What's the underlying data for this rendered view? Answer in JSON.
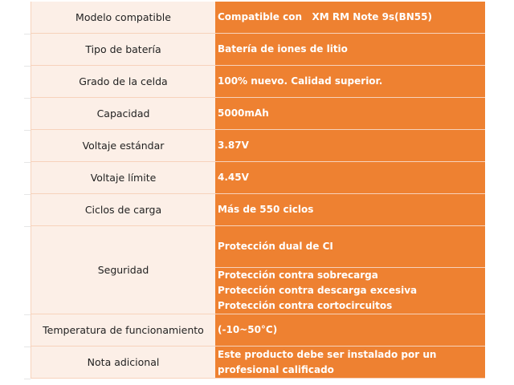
{
  "rows": [
    {
      "label": "Modelo compatible",
      "value": "Compatible con   XM RM Note 9s(BN55)"
    },
    {
      "label": "Tipo de batería",
      "value": "Batería de iones de litio"
    },
    {
      "label": "Grado de la celda",
      "value": "100% nuevo. Calidad superior."
    },
    {
      "label": "Capacidad",
      "value": "5000mAh"
    },
    {
      "label": "Voltaje estándar",
      "value": "3.87V"
    },
    {
      "label": "Voltaje límite",
      "value": "4.45V"
    },
    {
      "label": "Ciclos de carga",
      "value": "Más de 550 ciclos"
    }
  ],
  "security": {
    "label": "Seguridad",
    "items": [
      "Protección dual de CI",
      "Protección contra sobrecarga",
      "Protección contra descarga excesiva",
      "Protección contra cortocircuitos"
    ]
  },
  "temperature": {
    "label": "Temperatura de funcionamiento",
    "value": "(-10~50°C)"
  },
  "note": {
    "label": "Nota adicional",
    "value": "Este producto debe ser instalado por un profesional calificado"
  },
  "colors": {
    "accent": "#ee8131",
    "label_bg": "#fcefe7"
  }
}
